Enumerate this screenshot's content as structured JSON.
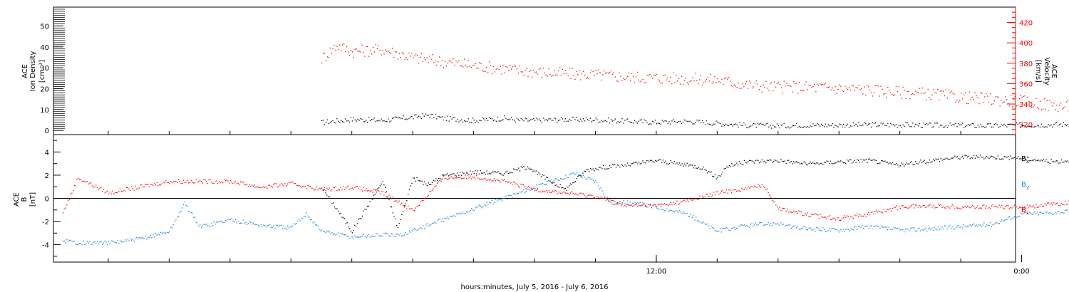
{
  "colors": {
    "black": "#000000",
    "red": "#ff0000",
    "blue": "#1e7fd7",
    "axis": "#000000"
  },
  "time_axis": {
    "range_hours": [
      -7.8,
      23.8
    ],
    "tick_labels": [
      {
        "hour": 12,
        "text": "12:00"
      },
      {
        "hour": 24,
        "text": "0:00"
      }
    ],
    "minor_tick_hours": [
      -6,
      -4,
      -2,
      0,
      2,
      4,
      6,
      8,
      10,
      12,
      14,
      16,
      18,
      20,
      22,
      24,
      26,
      28,
      30,
      32,
      34,
      36,
      38,
      40,
      42,
      44,
      46,
      48,
      50,
      52,
      54,
      56
    ],
    "xlabel": "hours:minutes, July  5, 2016 - July  6, 2016"
  },
  "chart_data": [
    {
      "type": "scatter",
      "panel": "top",
      "ylabel": [
        "ACE",
        "Ion Density",
        "[cm⁻³]"
      ],
      "ylim": [
        -2,
        59
      ],
      "yticks": [
        0,
        10,
        20,
        30,
        40,
        50
      ],
      "y2label": [
        "ACE",
        "Velocity",
        "[km/s]"
      ],
      "y2lim": [
        310,
        435
      ],
      "y2ticks": [
        320,
        340,
        360,
        380,
        400,
        420
      ],
      "series": [
        {
          "color": "#000000",
          "axis": "left",
          "points": [
            [
              1,
              4
            ],
            [
              2,
              5.5
            ],
            [
              3,
              5
            ],
            [
              4,
              6.5
            ],
            [
              4.5,
              7.5
            ],
            [
              5,
              6
            ],
            [
              6,
              5
            ],
            [
              7,
              6
            ],
            [
              7.5,
              5
            ],
            [
              8,
              5
            ],
            [
              9,
              5.5
            ],
            [
              10,
              5.3
            ],
            [
              11,
              4.6
            ],
            [
              12,
              4.1
            ],
            [
              13,
              4.6
            ],
            [
              14,
              3.6
            ],
            [
              15,
              2.6
            ],
            [
              16,
              2.4
            ],
            [
              17,
              2.7
            ],
            [
              18,
              2.7
            ],
            [
              19,
              2.9
            ],
            [
              20,
              2.9
            ],
            [
              21,
              2.6
            ],
            [
              22,
              2.6
            ],
            [
              23,
              2.4
            ],
            [
              24,
              2.7
            ],
            [
              25,
              3.0
            ],
            [
              26,
              3.4
            ],
            [
              27,
              3.9
            ],
            [
              28,
              4.4
            ],
            [
              29,
              4.6
            ],
            [
              30,
              4.9
            ],
            [
              31,
              4.9
            ],
            [
              32,
              4.6
            ]
          ]
        },
        {
          "color": "#ff0000",
          "axis": "right",
          "points": [
            [
              1,
              385
            ],
            [
              1.5,
              398
            ],
            [
              2,
              392
            ],
            [
              3,
              394
            ],
            [
              4,
              386
            ],
            [
              5,
              382
            ],
            [
              6,
              378
            ],
            [
              7,
              375
            ],
            [
              8,
              372
            ],
            [
              9,
              370
            ],
            [
              10,
              369
            ],
            [
              11,
              367
            ],
            [
              12,
              366
            ],
            [
              13,
              365
            ],
            [
              14,
              364
            ],
            [
              15,
              359
            ],
            [
              16,
              357
            ],
            [
              17,
              357
            ],
            [
              18,
              356
            ],
            [
              19,
              354
            ],
            [
              20,
              352
            ],
            [
              21,
              350
            ],
            [
              22,
              347
            ],
            [
              23,
              345
            ],
            [
              24,
              343
            ],
            [
              25,
              339
            ],
            [
              26,
              337
            ],
            [
              27,
              336
            ],
            [
              28,
              333
            ],
            [
              29,
              333
            ],
            [
              30,
              334
            ],
            [
              31,
              330
            ],
            [
              32,
              324
            ]
          ]
        }
      ]
    },
    {
      "type": "scatter",
      "panel": "bottom",
      "ylabel": [
        "ACE",
        "B",
        "[nT]"
      ],
      "ylim": [
        -5.5,
        5.5
      ],
      "yticks": [
        -4,
        -2,
        0,
        2,
        4
      ],
      "legend": [
        "B",
        "B",
        "B"
      ],
      "legend_subscripts": [
        "x",
        "y",
        "z"
      ],
      "series": [
        {
          "color": "#000000",
          "points": [
            [
              1,
              1
            ],
            [
              2,
              -2.8
            ],
            [
              3,
              1.5
            ],
            [
              3.5,
              -2.5
            ],
            [
              4,
              1.8
            ],
            [
              4.5,
              1.2
            ],
            [
              5,
              2
            ],
            [
              6,
              2.3
            ],
            [
              7,
              2.2
            ],
            [
              7.8,
              2.8
            ],
            [
              8,
              2.3
            ],
            [
              9,
              0.8
            ],
            [
              9.7,
              2.5
            ],
            [
              10.5,
              2.8
            ],
            [
              11,
              2.9
            ],
            [
              12,
              3.3
            ],
            [
              13,
              2.9
            ],
            [
              13.5,
              2.7
            ],
            [
              14,
              1.8
            ],
            [
              14.3,
              2.8
            ],
            [
              15,
              3.2
            ],
            [
              16,
              3.3
            ],
            [
              17,
              3.0
            ],
            [
              18,
              3.2
            ],
            [
              19,
              3.3
            ],
            [
              20,
              2.9
            ],
            [
              21,
              3.3
            ],
            [
              22,
              3.6
            ],
            [
              23,
              3.6
            ],
            [
              24,
              3.5
            ],
            [
              25,
              3.2
            ],
            [
              26,
              3.4
            ],
            [
              27,
              3.5
            ],
            [
              28,
              3.3
            ],
            [
              29,
              3.4
            ],
            [
              30,
              2.7
            ],
            [
              30.5,
              3.5
            ],
            [
              31,
              3.6
            ],
            [
              32,
              3.1
            ]
          ]
        },
        {
          "color": "#1e7fd7",
          "points": [
            [
              -7.5,
              -3.6
            ],
            [
              -7,
              -3.8
            ],
            [
              -6,
              -3.8
            ],
            [
              -5,
              -3.5
            ],
            [
              -4,
              -2.8
            ],
            [
              -3.5,
              -0.4
            ],
            [
              -3,
              -2.4
            ],
            [
              -2,
              -1.8
            ],
            [
              -1,
              -2.3
            ],
            [
              0,
              -2.5
            ],
            [
              0.5,
              -1.3
            ],
            [
              1,
              -2.8
            ],
            [
              2,
              -3.3
            ],
            [
              3,
              -3.1
            ],
            [
              3.5,
              -3.2
            ],
            [
              9.3,
              2.2
            ],
            [
              10,
              1.5
            ],
            [
              10.5,
              -0.4
            ],
            [
              11,
              -0.3
            ],
            [
              12,
              -0.7
            ],
            [
              13,
              -1.3
            ],
            [
              14,
              -2.8
            ],
            [
              15,
              -2.3
            ],
            [
              16,
              -2.1
            ],
            [
              16.5,
              -2.5
            ],
            [
              17,
              -2.6
            ],
            [
              18,
              -2.7
            ],
            [
              19,
              -2.4
            ],
            [
              20,
              -2.7
            ],
            [
              21,
              -2.6
            ],
            [
              22,
              -2.4
            ],
            [
              23,
              -2.2
            ],
            [
              24,
              -1.3
            ],
            [
              25,
              -1.2
            ],
            [
              26,
              -1.0
            ],
            [
              27,
              -0.9
            ],
            [
              28,
              -1.0
            ],
            [
              29,
              -1.3
            ],
            [
              29.5,
              -1.3
            ],
            [
              30,
              -0.7
            ],
            [
              31,
              0.3
            ],
            [
              32,
              -0.8
            ]
          ]
        },
        {
          "color": "#ff0000",
          "points": [
            [
              -7.5,
              -1.2
            ],
            [
              -7,
              1.8
            ],
            [
              -6,
              0.5
            ],
            [
              -5,
              1.0
            ],
            [
              -4,
              1.5
            ],
            [
              -3,
              1.5
            ],
            [
              -2,
              1.5
            ],
            [
              -1,
              1.0
            ],
            [
              0,
              1.3
            ],
            [
              1,
              0.8
            ],
            [
              2,
              1.0
            ],
            [
              3,
              0.5
            ],
            [
              4,
              -1.0
            ],
            [
              5,
              1.8
            ],
            [
              6,
              1.9
            ],
            [
              7,
              1.5
            ],
            [
              8,
              0.8
            ],
            [
              9,
              0.5
            ],
            [
              10,
              0.2
            ],
            [
              11,
              -0.6
            ],
            [
              12,
              -0.6
            ],
            [
              13,
              -0.2
            ],
            [
              14,
              0.5
            ],
            [
              15,
              0.9
            ],
            [
              15.5,
              1.2
            ],
            [
              16,
              -0.8
            ],
            [
              17,
              -1.4
            ],
            [
              18,
              -1.7
            ],
            [
              19,
              -1.3
            ],
            [
              20,
              -0.7
            ],
            [
              21,
              -0.6
            ],
            [
              22,
              -0.7
            ],
            [
              23,
              -0.7
            ],
            [
              24,
              -0.7
            ],
            [
              25,
              -0.5
            ],
            [
              26,
              -0.2
            ],
            [
              27,
              -0.7
            ],
            [
              28,
              -0.3
            ],
            [
              28.5,
              -1.5
            ],
            [
              29,
              0.8
            ],
            [
              30,
              0.6
            ],
            [
              31,
              1.0
            ],
            [
              32,
              2.0
            ]
          ]
        }
      ]
    }
  ]
}
